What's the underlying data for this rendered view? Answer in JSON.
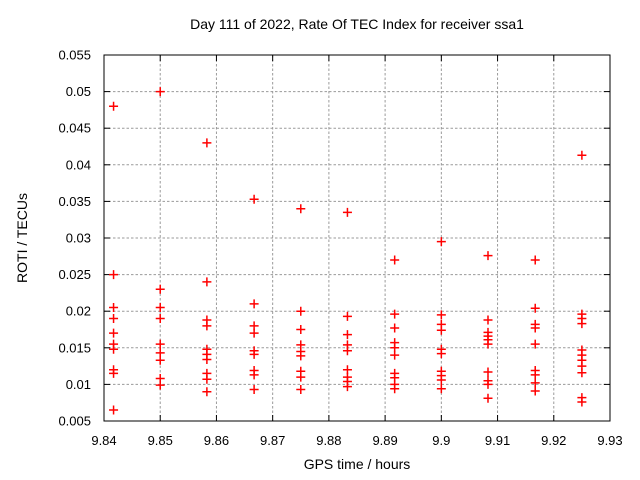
{
  "chart_data": {
    "type": "scatter",
    "title": "Day 111 of 2022, Rate Of TEC Index for receiver ssa1",
    "xlabel": "GPS time / hours",
    "ylabel": "ROTI / TECUs",
    "xlim": [
      9.84,
      9.93
    ],
    "ylim": [
      0.005,
      0.055
    ],
    "grid": true,
    "legend": "none",
    "marker": {
      "shape": "plus",
      "color": "#ff0000",
      "size": 9
    },
    "grid_color": "#9a9a9a",
    "xticks": {
      "values": [
        9.84,
        9.85,
        9.86,
        9.87,
        9.88,
        9.89,
        9.9,
        9.91,
        9.92,
        9.93
      ],
      "labels": [
        "9.84",
        "9.85",
        "9.86",
        "9.87",
        "9.88",
        "9.89",
        "9.9",
        "9.91",
        "9.92",
        "9.93"
      ]
    },
    "yticks": {
      "values": [
        0.005,
        0.01,
        0.015,
        0.02,
        0.025,
        0.03,
        0.035,
        0.04,
        0.045,
        0.05,
        0.055
      ],
      "labels": [
        "0.005",
        "0.01",
        "0.015",
        "0.02",
        "0.025",
        "0.03",
        "0.035",
        "0.04",
        "0.045",
        "0.05",
        "0.055"
      ]
    },
    "series": [
      {
        "name": "ROTI",
        "points": [
          [
            9.8417,
            0.048
          ],
          [
            9.8417,
            0.025
          ],
          [
            9.8417,
            0.0205
          ],
          [
            9.8417,
            0.019
          ],
          [
            9.8417,
            0.017
          ],
          [
            9.8417,
            0.0155
          ],
          [
            9.8417,
            0.0148
          ],
          [
            9.8417,
            0.012
          ],
          [
            9.8417,
            0.0115
          ],
          [
            9.8417,
            0.0065
          ],
          [
            9.85,
            0.05
          ],
          [
            9.85,
            0.023
          ],
          [
            9.85,
            0.0205
          ],
          [
            9.85,
            0.019
          ],
          [
            9.85,
            0.0155
          ],
          [
            9.85,
            0.0143
          ],
          [
            9.85,
            0.0133
          ],
          [
            9.85,
            0.0108
          ],
          [
            9.85,
            0.0099
          ],
          [
            9.8583,
            0.043
          ],
          [
            9.8583,
            0.024
          ],
          [
            9.8583,
            0.0188
          ],
          [
            9.8583,
            0.018
          ],
          [
            9.8583,
            0.0148
          ],
          [
            9.8583,
            0.0141
          ],
          [
            9.8583,
            0.0134
          ],
          [
            9.8583,
            0.0115
          ],
          [
            9.8583,
            0.0107
          ],
          [
            9.8583,
            0.009
          ],
          [
            9.8667,
            0.0353
          ],
          [
            9.8667,
            0.021
          ],
          [
            9.8667,
            0.018
          ],
          [
            9.8667,
            0.017
          ],
          [
            9.8667,
            0.0146
          ],
          [
            9.8667,
            0.0141
          ],
          [
            9.8667,
            0.0119
          ],
          [
            9.8667,
            0.0113
          ],
          [
            9.8667,
            0.0093
          ],
          [
            9.875,
            0.034
          ],
          [
            9.875,
            0.02
          ],
          [
            9.875,
            0.0175
          ],
          [
            9.875,
            0.0154
          ],
          [
            9.875,
            0.0145
          ],
          [
            9.875,
            0.0139
          ],
          [
            9.875,
            0.0118
          ],
          [
            9.875,
            0.011
          ],
          [
            9.875,
            0.0093
          ],
          [
            9.8833,
            0.0335
          ],
          [
            9.8833,
            0.0193
          ],
          [
            9.8833,
            0.0168
          ],
          [
            9.8833,
            0.0154
          ],
          [
            9.8833,
            0.0146
          ],
          [
            9.8833,
            0.012
          ],
          [
            9.8833,
            0.011
          ],
          [
            9.8833,
            0.0104
          ],
          [
            9.8833,
            0.0097
          ],
          [
            9.8917,
            0.027
          ],
          [
            9.8917,
            0.0196
          ],
          [
            9.8917,
            0.0177
          ],
          [
            9.8917,
            0.0157
          ],
          [
            9.8917,
            0.015
          ],
          [
            9.8917,
            0.014
          ],
          [
            9.8917,
            0.0115
          ],
          [
            9.8917,
            0.0109
          ],
          [
            9.8917,
            0.01
          ],
          [
            9.8917,
            0.0094
          ],
          [
            9.9,
            0.0295
          ],
          [
            9.9,
            0.0195
          ],
          [
            9.9,
            0.0182
          ],
          [
            9.9,
            0.0174
          ],
          [
            9.9,
            0.0148
          ],
          [
            9.9,
            0.0142
          ],
          [
            9.9,
            0.0118
          ],
          [
            9.9,
            0.0112
          ],
          [
            9.9,
            0.0106
          ],
          [
            9.9,
            0.0094
          ],
          [
            9.9083,
            0.0276
          ],
          [
            9.9083,
            0.0188
          ],
          [
            9.9083,
            0.0171
          ],
          [
            9.9083,
            0.0166
          ],
          [
            9.9083,
            0.0161
          ],
          [
            9.9083,
            0.0155
          ],
          [
            9.9083,
            0.0117
          ],
          [
            9.9083,
            0.0105
          ],
          [
            9.9083,
            0.01
          ],
          [
            9.9083,
            0.0081
          ],
          [
            9.9167,
            0.027
          ],
          [
            9.9167,
            0.0204
          ],
          [
            9.9167,
            0.0182
          ],
          [
            9.9167,
            0.0177
          ],
          [
            9.9167,
            0.0155
          ],
          [
            9.9167,
            0.0119
          ],
          [
            9.9167,
            0.0113
          ],
          [
            9.9167,
            0.0102
          ],
          [
            9.9167,
            0.0091
          ],
          [
            9.925,
            0.0413
          ],
          [
            9.925,
            0.0196
          ],
          [
            9.925,
            0.019
          ],
          [
            9.925,
            0.0183
          ],
          [
            9.925,
            0.0147
          ],
          [
            9.925,
            0.014
          ],
          [
            9.925,
            0.0133
          ],
          [
            9.925,
            0.0125
          ],
          [
            9.925,
            0.0116
          ],
          [
            9.925,
            0.0082
          ],
          [
            9.925,
            0.0076
          ]
        ]
      }
    ]
  }
}
